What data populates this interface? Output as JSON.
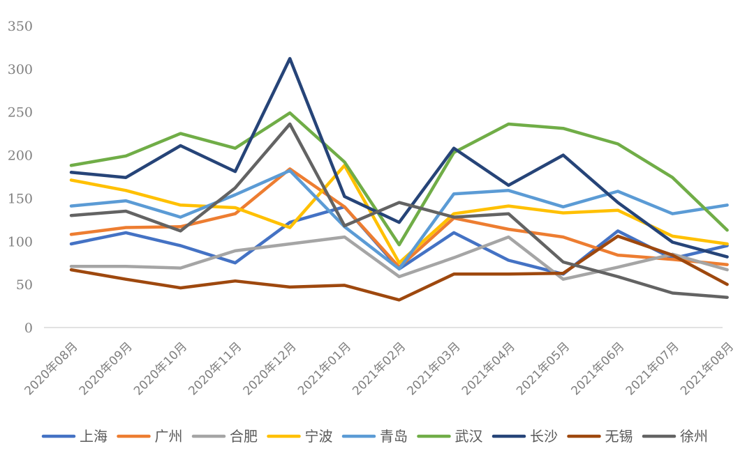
{
  "chart_data": {
    "type": "line",
    "title": "",
    "xlabel": "",
    "ylabel": "",
    "ylim": [
      0,
      350
    ],
    "yticks": [
      0,
      50,
      100,
      150,
      200,
      250,
      300,
      350
    ],
    "grid": false,
    "legend": "bottom",
    "categories": [
      "2020年08月",
      "2020年09月",
      "2020年10月",
      "2020年11月",
      "2020年12月",
      "2021年01月",
      "2021年02月",
      "2021年03月",
      "2021年04月",
      "2021年05月",
      "2021年06月",
      "2021年07月",
      "2021年08月"
    ],
    "series": [
      {
        "name": "上海",
        "color": "#4472c4",
        "values": [
          97,
          110,
          95,
          75,
          122,
          140,
          68,
          110,
          78,
          62,
          112,
          80,
          95
        ]
      },
      {
        "name": "广州",
        "color": "#ed7d31",
        "values": [
          108,
          116,
          117,
          132,
          184,
          140,
          70,
          127,
          114,
          105,
          84,
          79,
          73
        ]
      },
      {
        "name": "合肥",
        "color": "#a5a5a5",
        "values": [
          71,
          71,
          69,
          89,
          97,
          105,
          59,
          81,
          105,
          56,
          70,
          85,
          67
        ]
      },
      {
        "name": "宁波",
        "color": "#ffc000",
        "values": [
          171,
          159,
          142,
          139,
          116,
          188,
          75,
          132,
          141,
          133,
          136,
          106,
          97
        ]
      },
      {
        "name": "青岛",
        "color": "#5b9bd5",
        "values": [
          141,
          147,
          128,
          154,
          182,
          117,
          68,
          155,
          159,
          140,
          158,
          132,
          142
        ]
      },
      {
        "name": "武汉",
        "color": "#70ad47",
        "values": [
          188,
          199,
          225,
          208,
          249,
          192,
          96,
          203,
          236,
          231,
          213,
          174,
          113
        ]
      },
      {
        "name": "长沙",
        "color": "#264478",
        "values": [
          180,
          174,
          211,
          181,
          312,
          152,
          122,
          208,
          165,
          200,
          145,
          99,
          82
        ]
      },
      {
        "name": "无锡",
        "color": "#9e480e",
        "values": [
          67,
          56,
          46,
          54,
          47,
          49,
          32,
          62,
          62,
          63,
          106,
          84,
          50
        ]
      },
      {
        "name": "徐州",
        "color": "#636363",
        "values": [
          130,
          135,
          112,
          162,
          236,
          118,
          145,
          128,
          132,
          76,
          59,
          40,
          35
        ]
      }
    ]
  }
}
